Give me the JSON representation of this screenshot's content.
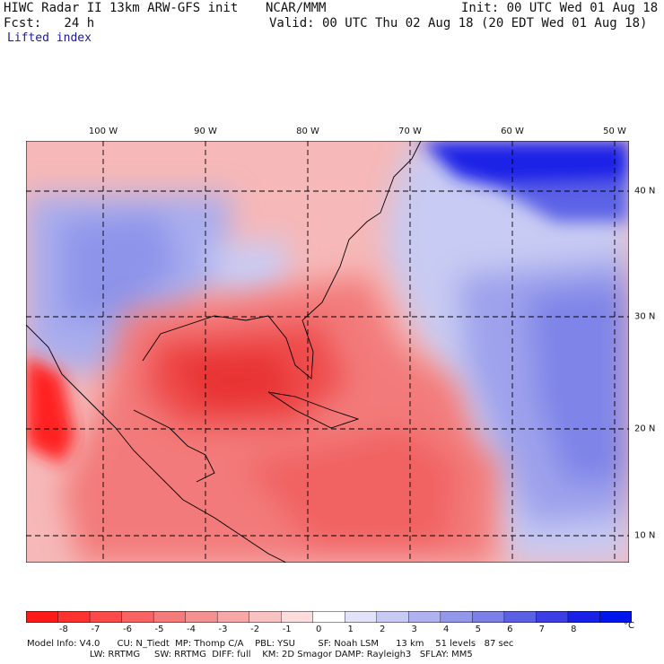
{
  "header": {
    "title": "HIWC Radar II 13km ARW-GFS init",
    "agency": "NCAR/MMM",
    "init": "Init: 00 UTC Wed 01 Aug 18",
    "fcst": "Fcst:   24 h",
    "valid": "Valid: 00 UTC Thu 02 Aug 18 (20 EDT Wed 01 Aug 18)",
    "field": "Lifted index"
  },
  "map": {
    "longitude_labels": [
      "100 W",
      "90 W",
      "80 W",
      "70 W",
      "60 W",
      "50 W"
    ],
    "latitude_labels": [
      "40 N",
      "30 N",
      "20 N",
      "10 N"
    ],
    "colors": {
      "warm_strong": "#ff2020",
      "warm": "#f46a6a",
      "neutral": "#ffffff",
      "cool": "#8a8ff0",
      "cool_strong": "#0018e0"
    }
  },
  "colorbar": {
    "tick_labels": [
      "-8",
      "-7",
      "-6",
      "-5",
      "-4",
      "-3",
      "-2",
      "-1",
      "0",
      "1",
      "2",
      "3",
      "4",
      "5",
      "6",
      "7",
      "8"
    ],
    "unit": "°C",
    "colors": [
      "#ff1a1a",
      "#ff3232",
      "#fb4a4a",
      "#f86464",
      "#f47b7b",
      "#f49090",
      "#f6a8a8",
      "#f9c2c2",
      "#fcdcdc",
      "#ffffff",
      "#e2e2f8",
      "#c8caf4",
      "#afb2ef",
      "#9397ea",
      "#7b7fe6",
      "#5c61e4",
      "#3c40e4",
      "#1a20e6",
      "#0016ec"
    ]
  },
  "footer": {
    "line1": "Model Info: V4.0      CU: N_Tiedt  MP: Thomp C/A    PBL: YSU        SF: Noah LSM      13 km    51 levels   87 sec",
    "line2": "                      LW: RRTMG     SW: RRTMG  DIFF: full    KM: 2D Smagor DAMP: Rayleigh3   SFLAY: MM5"
  }
}
